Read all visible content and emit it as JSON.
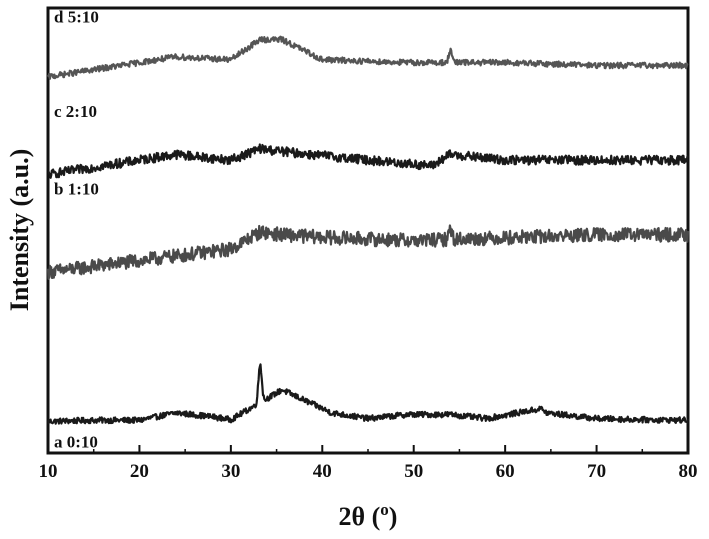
{
  "chart_data": {
    "type": "line",
    "title": "",
    "xlabel": "2θ (",
    "xlabel_sup": "o",
    "xlabel_close": ")",
    "ylabel": "Intensity (a.u.)",
    "xlim": [
      10,
      80
    ],
    "x_ticks": [
      "10",
      "20",
      "30",
      "40",
      "50",
      "60",
      "70",
      "80"
    ],
    "y_ticks_labeled": false,
    "grid": false,
    "legend": "none",
    "series": [
      {
        "name": "a 0:10",
        "color": "#1a1a1a",
        "baseline": 0.0,
        "noise": 0.05,
        "x": [
          10,
          15,
          20,
          24,
          28,
          30,
          33.2,
          35.6,
          41,
          45,
          49.3,
          54,
          58,
          62.4,
          64,
          64.5,
          70,
          75,
          80
        ],
        "y": [
          0.0,
          0.02,
          0.02,
          0.15,
          0.08,
          0.03,
          1.0,
          0.55,
          0.15,
          0.05,
          0.12,
          0.12,
          0.05,
          0.18,
          0.22,
          0.15,
          0.05,
          0.03,
          0.02
        ]
      },
      {
        "name": "b 1:10",
        "color": "#4a4a4a",
        "baseline": 2.6,
        "noise": 0.12,
        "x": [
          10,
          20,
          30,
          33.2,
          35.6,
          41,
          50,
          54,
          60,
          70,
          80
        ],
        "y": [
          2.6,
          2.8,
          3.0,
          3.3,
          3.25,
          3.2,
          3.15,
          3.35,
          3.2,
          3.25,
          3.25
        ]
      },
      {
        "name": "c 2:10",
        "color": "#1a1a1a",
        "baseline": 4.45,
        "noise": 0.08,
        "x": [
          10,
          20,
          24,
          30,
          33.2,
          35.6,
          45,
          52,
          54,
          60,
          70,
          80
        ],
        "y": [
          4.3,
          4.55,
          4.65,
          4.55,
          4.75,
          4.7,
          4.55,
          4.45,
          4.65,
          4.55,
          4.55,
          4.55
        ]
      },
      {
        "name": "d 5:10",
        "color": "#555555",
        "baseline": 6.0,
        "noise": 0.05,
        "x": [
          10,
          20,
          24,
          30,
          33.2,
          35.6,
          40,
          49.3,
          54,
          60,
          70,
          80
        ],
        "y": [
          6.0,
          6.25,
          6.35,
          6.3,
          6.65,
          6.65,
          6.3,
          6.25,
          6.45,
          6.25,
          6.2,
          6.2
        ]
      }
    ]
  }
}
